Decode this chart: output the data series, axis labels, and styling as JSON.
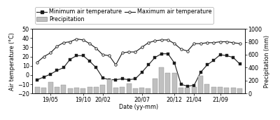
{
  "min_temp_x": [
    0,
    1,
    2,
    3,
    4,
    5,
    6,
    7,
    8,
    9,
    10,
    11,
    12,
    13,
    14,
    15,
    16,
    17,
    18,
    19,
    20,
    21,
    22,
    23,
    24,
    25,
    26,
    27,
    28,
    29,
    30,
    31
  ],
  "min_temp_y": [
    -5,
    -2,
    1,
    5,
    8,
    17,
    21,
    21,
    15,
    8,
    -3,
    -5,
    -5,
    -4,
    -5,
    -4,
    3,
    11,
    19,
    23,
    23,
    13,
    -10,
    -12,
    -11,
    3,
    11,
    16,
    22,
    21,
    19,
    12
  ],
  "max_temp_x": [
    0,
    1,
    2,
    3,
    4,
    5,
    6,
    7,
    8,
    9,
    10,
    11,
    12,
    13,
    14,
    15,
    16,
    17,
    18,
    19,
    20,
    21,
    22,
    23,
    24,
    25,
    26,
    27,
    28,
    29,
    30,
    31
  ],
  "max_temp_y": [
    14,
    20,
    24,
    31,
    35,
    36,
    39,
    38,
    34,
    29,
    22,
    21,
    11,
    24,
    25,
    25,
    30,
    35,
    37,
    38,
    38,
    34,
    28,
    26,
    34,
    34,
    35,
    35,
    36,
    36,
    35,
    34
  ],
  "precip_x": [
    0,
    1,
    2,
    3,
    4,
    5,
    6,
    7,
    8,
    9,
    10,
    11,
    12,
    13,
    14,
    15,
    16,
    17,
    18,
    19,
    20,
    21,
    22,
    23,
    24,
    25,
    26,
    27,
    28,
    29,
    30,
    31
  ],
  "precip_y": [
    100,
    95,
    180,
    100,
    130,
    80,
    90,
    80,
    100,
    100,
    130,
    220,
    90,
    100,
    160,
    80,
    90,
    80,
    230,
    410,
    320,
    320,
    90,
    95,
    100,
    280,
    150,
    100,
    100,
    90,
    90,
    85
  ],
  "x_tick_positions": [
    2,
    7,
    10,
    16,
    21,
    24,
    28
  ],
  "x_tick_labels": [
    "19/05",
    "19/10",
    "20/02",
    "20/07",
    "20/12",
    "21/04",
    "21/09"
  ],
  "y_left_min": -20,
  "y_left_max": 50,
  "y_right_min": 0,
  "y_right_max": 1000,
  "y_left_ticks": [
    -20,
    -10,
    0,
    10,
    20,
    30,
    40,
    50
  ],
  "y_right_ticks": [
    0,
    200,
    400,
    600,
    800,
    1000
  ],
  "xlabel": "Date (yy-mm)",
  "ylabel_left": "Air temperature (°C)",
  "ylabel_right": "Precipitation (mm)",
  "legend_min_temp": "Minimum air temperature",
  "legend_max_temp": "Maximum air temperature",
  "legend_precip": "Precipitation",
  "line_color": "#1a1a1a",
  "bar_color": "#c0c0c0",
  "bar_edge_color": "#888888",
  "fontsize": 5.8
}
